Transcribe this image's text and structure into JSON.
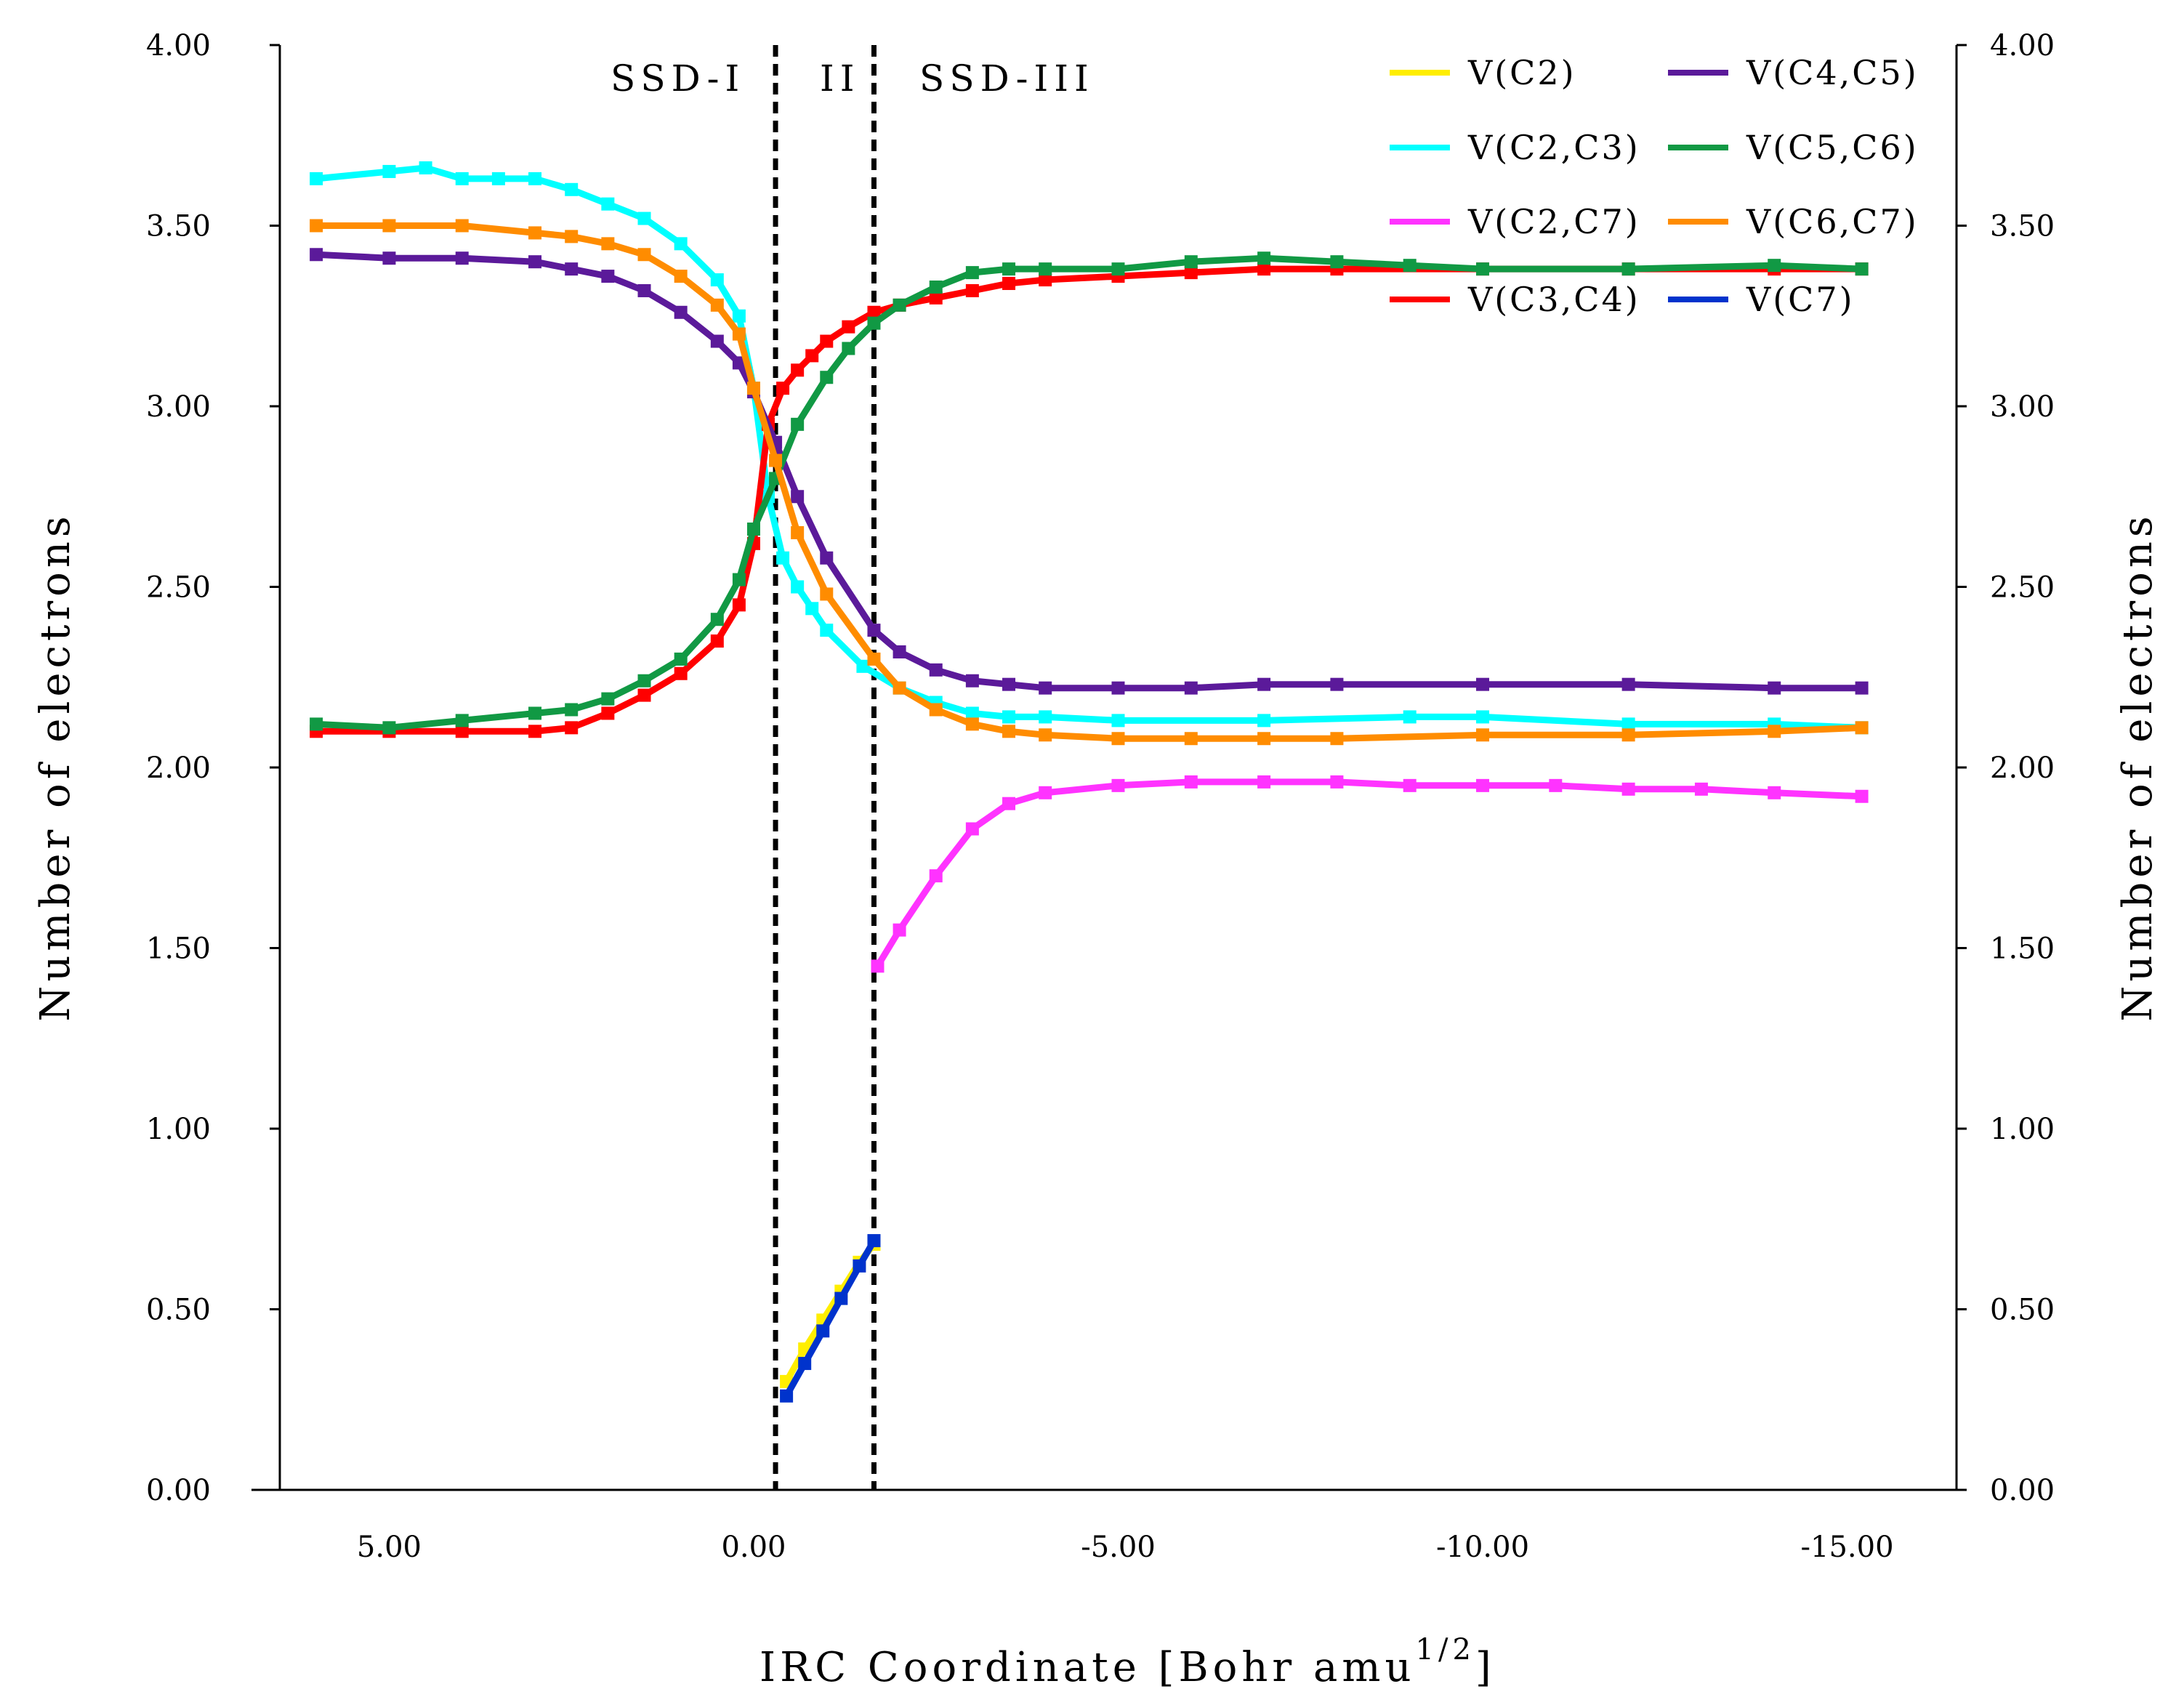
{
  "chart_data": {
    "type": "line",
    "xlabel": "IRC Coordinate [Bohr amu",
    "xlabel_sup": "1/2",
    "xlabel_end": "]",
    "ylabel": "Number of electrons",
    "ylabel_right": "Number of electrons",
    "xlim": [
      6.5,
      -16.5
    ],
    "ylim": [
      0,
      4
    ],
    "x_ticks": [
      5,
      0,
      -5,
      -10,
      -15
    ],
    "x_tick_labels": [
      "5.00",
      "0.00",
      "-5.00",
      "-10.00",
      "-15.00"
    ],
    "y_ticks": [
      0,
      0.5,
      1,
      1.5,
      2,
      2.5,
      3,
      3.5,
      4
    ],
    "y_tick_labels": [
      "0.00",
      "0.50",
      "1.00",
      "1.50",
      "2.00",
      "2.50",
      "3.00",
      "3.50",
      "4.00"
    ],
    "y_tick_labels_right": [
      "0.00",
      "0.50",
      "1.00",
      "1.50",
      "2.00",
      "2.50",
      "3.00",
      "3.50",
      "4.00"
    ],
    "vlines": [
      -0.3,
      -1.65
    ],
    "regions": [
      "SSD-I",
      "II",
      "SSD-III"
    ],
    "legend_position": "top-right",
    "series": [
      {
        "name": "V(C2)",
        "color": "#FFEE00",
        "x": [
          -0.45,
          -0.7,
          -0.95,
          -1.2,
          -1.45,
          -1.65
        ],
        "y": [
          0.3,
          0.39,
          0.47,
          0.55,
          0.63,
          0.68
        ]
      },
      {
        "name": "V(C2,C3)",
        "color": "#00FFFF",
        "x": [
          6,
          5,
          4.5,
          4,
          3.5,
          3,
          2.5,
          2,
          1.5,
          1,
          0.5,
          0.2,
          0,
          -0.2,
          -0.4,
          -0.6,
          -0.8,
          -1,
          -1.5,
          -2,
          -2.5,
          -3,
          -3.5,
          -4,
          -5,
          -7,
          -9,
          -10,
          -12,
          -14,
          -15.2
        ],
        "y": [
          3.63,
          3.65,
          3.66,
          3.63,
          3.63,
          3.63,
          3.6,
          3.56,
          3.52,
          3.45,
          3.35,
          3.25,
          3.05,
          2.75,
          2.58,
          2.5,
          2.44,
          2.38,
          2.28,
          2.22,
          2.18,
          2.15,
          2.14,
          2.14,
          2.13,
          2.13,
          2.14,
          2.14,
          2.12,
          2.12,
          2.11
        ]
      },
      {
        "name": "V(C2,C7)",
        "color": "#FF33FF",
        "x": [
          -1.7,
          -2,
          -2.5,
          -3,
          -3.5,
          -4,
          -5,
          -6,
          -7,
          -8,
          -9,
          -10,
          -11,
          -12,
          -13,
          -14,
          -15.2
        ],
        "y": [
          1.45,
          1.55,
          1.7,
          1.83,
          1.9,
          1.93,
          1.95,
          1.96,
          1.96,
          1.96,
          1.95,
          1.95,
          1.95,
          1.94,
          1.94,
          1.93,
          1.92
        ]
      },
      {
        "name": "V(C3,C4)",
        "color": "#FF0000",
        "x": [
          6,
          5,
          4,
          3,
          2.5,
          2,
          1.5,
          1,
          0.5,
          0.2,
          0,
          -0.2,
          -0.4,
          -0.6,
          -0.8,
          -1,
          -1.3,
          -1.65,
          -2,
          -2.5,
          -3,
          -3.5,
          -4,
          -5,
          -6,
          -7,
          -8,
          -10,
          -12,
          -14,
          -15.2
        ],
        "y": [
          2.1,
          2.1,
          2.1,
          2.1,
          2.11,
          2.15,
          2.2,
          2.26,
          2.35,
          2.45,
          2.62,
          2.95,
          3.05,
          3.1,
          3.14,
          3.18,
          3.22,
          3.26,
          3.28,
          3.3,
          3.32,
          3.34,
          3.35,
          3.36,
          3.37,
          3.38,
          3.38,
          3.38,
          3.38,
          3.38,
          3.38
        ]
      },
      {
        "name": "V(C4,C5)",
        "color": "#5B1A9A",
        "x": [
          6,
          5,
          4,
          3,
          2.5,
          2,
          1.5,
          1,
          0.5,
          0.2,
          0,
          -0.3,
          -0.6,
          -1,
          -1.65,
          -2,
          -2.5,
          -3,
          -3.5,
          -4,
          -5,
          -6,
          -7,
          -8,
          -10,
          -12,
          -14,
          -15.2
        ],
        "y": [
          3.42,
          3.41,
          3.41,
          3.4,
          3.38,
          3.36,
          3.32,
          3.26,
          3.18,
          3.12,
          3.04,
          2.9,
          2.75,
          2.58,
          2.38,
          2.32,
          2.27,
          2.24,
          2.23,
          2.22,
          2.22,
          2.22,
          2.23,
          2.23,
          2.23,
          2.23,
          2.22,
          2.22
        ]
      },
      {
        "name": "V(C5,C6)",
        "color": "#119944",
        "x": [
          6,
          5,
          4,
          3,
          2.5,
          2,
          1.5,
          1,
          0.5,
          0.2,
          0,
          -0.3,
          -0.6,
          -1,
          -1.3,
          -1.65,
          -2,
          -2.5,
          -3,
          -3.5,
          -4,
          -5,
          -6,
          -7,
          -8,
          -9,
          -10,
          -12,
          -14,
          -15.2
        ],
        "y": [
          2.12,
          2.11,
          2.13,
          2.15,
          2.16,
          2.19,
          2.24,
          2.3,
          2.41,
          2.52,
          2.66,
          2.8,
          2.95,
          3.08,
          3.16,
          3.23,
          3.28,
          3.33,
          3.37,
          3.38,
          3.38,
          3.38,
          3.4,
          3.41,
          3.4,
          3.39,
          3.38,
          3.38,
          3.39,
          3.38
        ]
      },
      {
        "name": "V(C6,C7)",
        "color": "#FF8C00",
        "x": [
          6,
          5,
          4,
          3,
          2.5,
          2,
          1.5,
          1,
          0.5,
          0.2,
          0,
          -0.3,
          -0.6,
          -1,
          -1.65,
          -2,
          -2.5,
          -3,
          -3.5,
          -4,
          -5,
          -6,
          -7,
          -8,
          -10,
          -12,
          -14,
          -15.2
        ],
        "y": [
          3.5,
          3.5,
          3.5,
          3.48,
          3.47,
          3.45,
          3.42,
          3.36,
          3.28,
          3.2,
          3.05,
          2.85,
          2.65,
          2.48,
          2.3,
          2.22,
          2.16,
          2.12,
          2.1,
          2.09,
          2.08,
          2.08,
          2.08,
          2.08,
          2.09,
          2.09,
          2.1,
          2.11
        ]
      },
      {
        "name": "V(C7)",
        "color": "#0033CC",
        "x": [
          -0.45,
          -0.7,
          -0.95,
          -1.2,
          -1.45,
          -1.65
        ],
        "y": [
          0.26,
          0.35,
          0.44,
          0.53,
          0.62,
          0.69
        ]
      }
    ]
  }
}
